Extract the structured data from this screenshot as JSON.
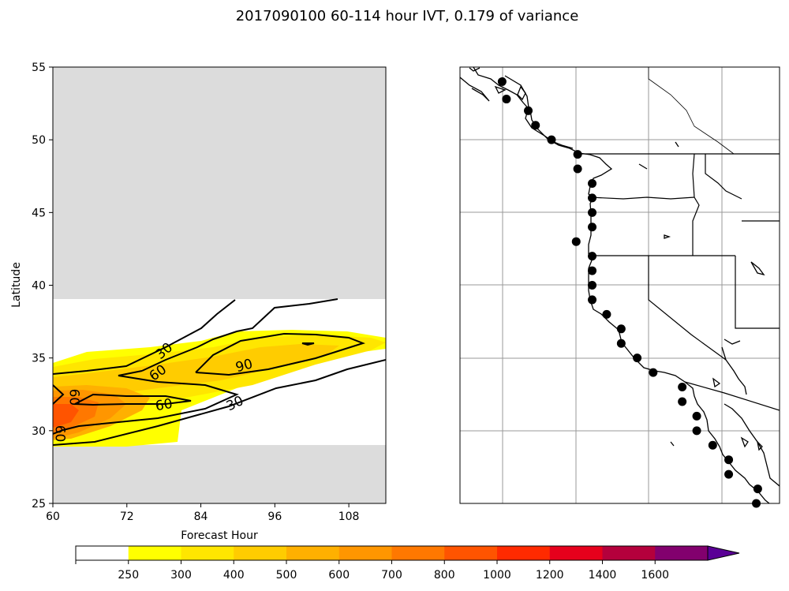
{
  "title": "2017090100 60-114 hour IVT, 0.179 of variance",
  "chart_data": [
    {
      "type": "contour",
      "xlabel": "Forecast Hour",
      "ylabel": "Latitude",
      "xlim": [
        60,
        114
      ],
      "ylim": [
        25,
        55
      ],
      "xticks": [
        60,
        72,
        84,
        96,
        108
      ],
      "yticks": [
        25,
        30,
        35,
        40,
        45,
        50,
        55
      ],
      "valid_lat_range": [
        29,
        39
      ],
      "missing_color": "#dcdcdc",
      "contour_labels": [
        {
          "text": "30",
          "x": 78,
          "y": 35.5,
          "angle": -40
        },
        {
          "text": "60",
          "x": 77,
          "y": 34.0,
          "angle": -35
        },
        {
          "text": "90",
          "x": 91,
          "y": 34.5,
          "angle": -15
        },
        {
          "text": "60",
          "x": 63.5,
          "y": 32.3,
          "angle": 90
        },
        {
          "text": "60",
          "x": 78,
          "y": 31.8,
          "angle": -10
        },
        {
          "text": "30",
          "x": 89.5,
          "y": 31.9,
          "angle": -25
        },
        {
          "text": "60",
          "x": 61.2,
          "y": 29.8,
          "angle": 90
        }
      ]
    },
    {
      "type": "map",
      "lon_range": [
        -135,
        -113
      ],
      "lat_range": [
        25,
        55
      ],
      "station_points": [
        {
          "lon": -132.1,
          "lat": 54.0
        },
        {
          "lon": -131.8,
          "lat": 52.8
        },
        {
          "lon": -130.3,
          "lat": 52.0
        },
        {
          "lon": -129.8,
          "lat": 51.0
        },
        {
          "lon": -128.7,
          "lat": 50.0
        },
        {
          "lon": -126.9,
          "lat": 49.0
        },
        {
          "lon": -126.9,
          "lat": 48.0
        },
        {
          "lon": -125.9,
          "lat": 47.0
        },
        {
          "lon": -125.9,
          "lat": 46.0
        },
        {
          "lon": -125.9,
          "lat": 45.0
        },
        {
          "lon": -125.9,
          "lat": 44.0
        },
        {
          "lon": -127.0,
          "lat": 43.0
        },
        {
          "lon": -125.9,
          "lat": 42.0
        },
        {
          "lon": -125.9,
          "lat": 41.0
        },
        {
          "lon": -125.9,
          "lat": 40.0
        },
        {
          "lon": -125.9,
          "lat": 39.0
        },
        {
          "lon": -124.9,
          "lat": 38.0
        },
        {
          "lon": -123.9,
          "lat": 37.0
        },
        {
          "lon": -123.9,
          "lat": 36.0
        },
        {
          "lon": -122.8,
          "lat": 35.0
        },
        {
          "lon": -121.7,
          "lat": 34.0
        },
        {
          "lon": -119.7,
          "lat": 33.0
        },
        {
          "lon": -119.7,
          "lat": 32.0
        },
        {
          "lon": -118.7,
          "lat": 31.0
        },
        {
          "lon": -118.7,
          "lat": 30.0
        },
        {
          "lon": -117.6,
          "lat": 29.0
        },
        {
          "lon": -116.5,
          "lat": 28.0
        },
        {
          "lon": -116.5,
          "lat": 27.0
        },
        {
          "lon": -114.5,
          "lat": 26.0
        },
        {
          "lon": -114.6,
          "lat": 25.0
        }
      ]
    }
  ],
  "colorbar": {
    "ticks": [
      "250",
      "300",
      "400",
      "500",
      "600",
      "700",
      "800",
      "1000",
      "1200",
      "1400",
      "1600"
    ],
    "colors": [
      "#ffffff",
      "#ffff00",
      "#ffe600",
      "#ffcc00",
      "#ffb000",
      "#ff9600",
      "#ff7800",
      "#ff5400",
      "#ff2a00",
      "#e6001c",
      "#b4003c",
      "#82006e",
      "#5a0096"
    ]
  }
}
